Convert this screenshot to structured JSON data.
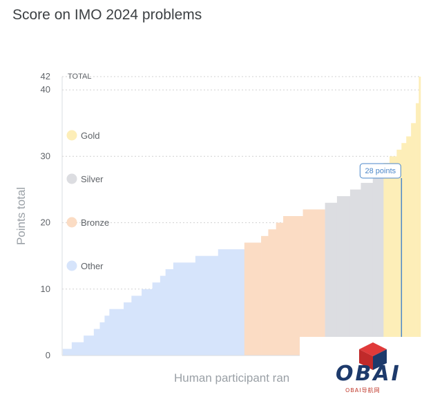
{
  "chart_data": {
    "type": "bar",
    "title": "Score on IMO 2024 problems",
    "xlabel": "Human participant ran",
    "ylabel": "Points total",
    "ylim": [
      0,
      42
    ],
    "yticks": [
      0,
      10,
      20,
      30,
      40,
      42
    ],
    "top_label": "TOTAL",
    "grid": true,
    "legend_position": "left",
    "legend": [
      {
        "name": "Gold",
        "color": "#fdeeb8"
      },
      {
        "name": "Silver",
        "color": "#dcdde1"
      },
      {
        "name": "Bronze",
        "color": "#fbdcc4"
      },
      {
        "name": "Other",
        "color": "#d6e4fb"
      }
    ],
    "series": [
      {
        "name": "Other",
        "color": "#d6e4fb",
        "x_range": [
          1,
          305
        ],
        "steps": [
          [
            0,
            1
          ],
          [
            15,
            2
          ],
          [
            35,
            3
          ],
          [
            52,
            4
          ],
          [
            62,
            5
          ],
          [
            70,
            6
          ],
          [
            78,
            7
          ],
          [
            102,
            8
          ],
          [
            115,
            9
          ],
          [
            132,
            10
          ],
          [
            150,
            11
          ],
          [
            163,
            12
          ],
          [
            172,
            13
          ],
          [
            185,
            14
          ],
          [
            222,
            15
          ],
          [
            260,
            16
          ]
        ]
      },
      {
        "name": "Bronze",
        "color": "#fbdcc4",
        "x_range": [
          305,
          440
        ],
        "steps": [
          [
            0,
            17
          ],
          [
            28,
            18
          ],
          [
            40,
            19
          ],
          [
            53,
            20
          ],
          [
            65,
            21
          ],
          [
            98,
            22
          ]
        ]
      },
      {
        "name": "Silver",
        "color": "#dcdde1",
        "x_range": [
          440,
          538
        ],
        "steps": [
          [
            0,
            23
          ],
          [
            20,
            24
          ],
          [
            42,
            25
          ],
          [
            60,
            26
          ],
          [
            80,
            27
          ]
        ]
      },
      {
        "name": "Gold",
        "color": "#fdeeb8",
        "x_range": [
          538,
          600
        ],
        "steps": [
          [
            0,
            29
          ],
          [
            10,
            30
          ],
          [
            22,
            31
          ],
          [
            30,
            32
          ],
          [
            38,
            33
          ],
          [
            46,
            35
          ],
          [
            54,
            38
          ],
          [
            59,
            42
          ]
        ]
      }
    ],
    "highlight": {
      "value": 28,
      "label": "28 points",
      "color": "#4a86c8"
    }
  },
  "watermark": {
    "name": "OBAI",
    "sub": "OBAI导航网"
  }
}
